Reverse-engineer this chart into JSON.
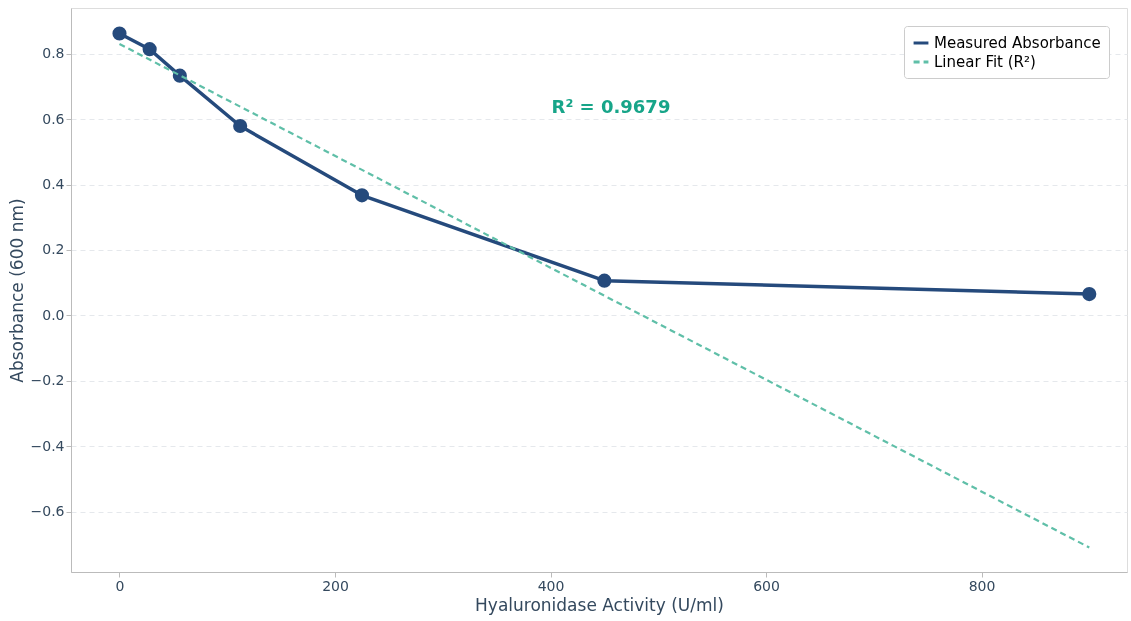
{
  "chart_data": {
    "type": "line",
    "xlabel": "Hyaluronidase Activity (U/ml)",
    "ylabel": "Absorbance (600 nm)",
    "series": [
      {
        "name": "Measured Absorbance",
        "color": "#254a7c",
        "marker": "circle",
        "line_style": "solid",
        "x": [
          0,
          28,
          56,
          112,
          225,
          450,
          900
        ],
        "values": [
          0.862,
          0.814,
          0.733,
          0.579,
          0.367,
          0.106,
          0.065
        ]
      },
      {
        "name": "Linear Fit (R²)",
        "color": "#5fbfa8",
        "type": "line",
        "marker": "none",
        "line_style": "dashed",
        "x": [
          0,
          900
        ],
        "values": [
          0.83,
          -0.71
        ]
      }
    ],
    "annotations": [
      "R² = 0.9679"
    ],
    "xlim": [
      -45,
      935
    ],
    "ylim": [
      -0.785,
      0.94
    ],
    "xticks": [
      0,
      200,
      400,
      600,
      800
    ],
    "yticks": [
      {
        "value": -0.6,
        "label": "−0.6"
      },
      {
        "value": -0.4,
        "label": "−0.4"
      },
      {
        "value": -0.2,
        "label": "−0.2"
      },
      {
        "value": 0.0,
        "label": "0.0"
      },
      {
        "value": 0.2,
        "label": "0.2"
      },
      {
        "value": 0.4,
        "label": "0.4"
      },
      {
        "value": 0.6,
        "label": "0.6"
      },
      {
        "value": 0.8,
        "label": "0.8"
      }
    ],
    "grid": "y",
    "legend": "top right"
  }
}
